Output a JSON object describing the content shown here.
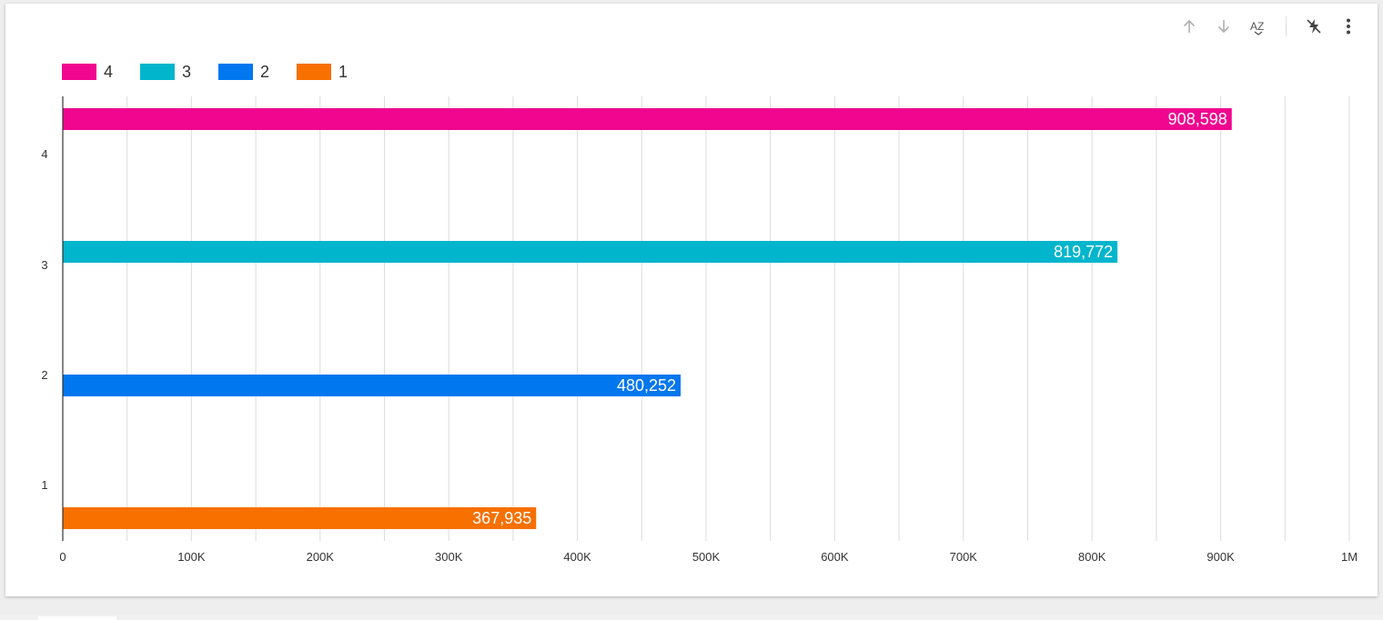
{
  "toolbar": {
    "sort_asc_icon": "arrow-up-icon",
    "sort_desc_icon": "arrow-down-icon",
    "sort_az_icon": "sort-az-icon",
    "sort_az_label": "AZ",
    "drill_icon": "lightning-off-icon",
    "more_icon": "more-vert-icon"
  },
  "legend": [
    {
      "label": "4",
      "color": "#f0068f"
    },
    {
      "label": "3",
      "color": "#00b5cc"
    },
    {
      "label": "2",
      "color": "#0077ee"
    },
    {
      "label": "1",
      "color": "#f77000"
    }
  ],
  "chart_data": {
    "type": "bar",
    "orientation": "horizontal",
    "categories": [
      "4",
      "3",
      "2",
      "1"
    ],
    "series": [
      {
        "name": "4",
        "values": [
          908598,
          null,
          null,
          null
        ],
        "color": "#f0068f"
      },
      {
        "name": "3",
        "values": [
          null,
          819772,
          null,
          null
        ],
        "color": "#00b5cc"
      },
      {
        "name": "2",
        "values": [
          null,
          null,
          480252,
          null
        ],
        "color": "#0077ee"
      },
      {
        "name": "1",
        "values": [
          null,
          null,
          null,
          367935
        ],
        "color": "#f77000"
      }
    ],
    "data_labels": [
      "908,598",
      "819,772",
      "480,252",
      "367,935"
    ],
    "x_ticks": [
      "0",
      "100K",
      "200K",
      "300K",
      "400K",
      "500K",
      "600K",
      "700K",
      "800K",
      "900K",
      "1M"
    ],
    "xlim": [
      0,
      1000000
    ],
    "grid": true,
    "legend_position": "top-left",
    "title": "",
    "xlabel": "",
    "ylabel": ""
  }
}
